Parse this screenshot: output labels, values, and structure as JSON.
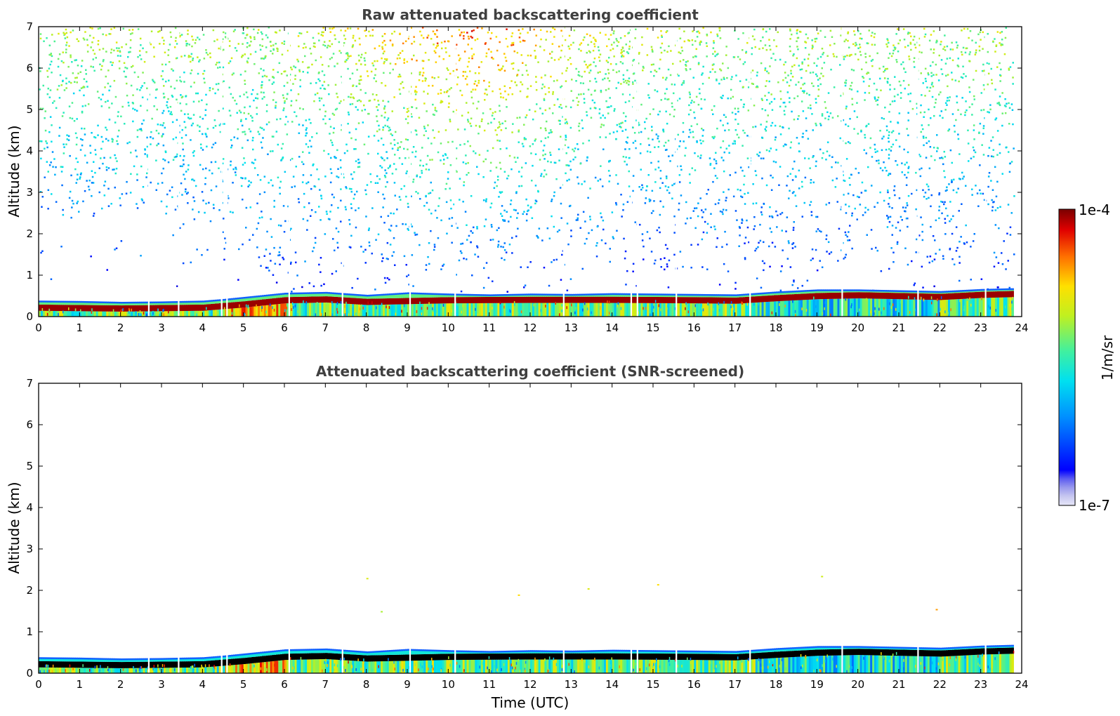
{
  "figure": {
    "colorbar": {
      "max_label": "1e-4",
      "min_label": "1e-7",
      "unit_label": "1/m/sr",
      "min_value": 1e-07,
      "max_value": 0.0001,
      "colormap": "jet",
      "low_end_colors": [
        "#e6e6f8",
        "#c8c8f0",
        "#a8a8ee",
        "#8080ee",
        "#5c5cf0"
      ]
    }
  },
  "chart_data": [
    {
      "type": "heatmap",
      "title": "Raw attenuated backscattering coefficient",
      "xlabel": "",
      "ylabel": "Altitude (km)",
      "xlim": [
        0,
        24
      ],
      "ylim": [
        0,
        7
      ],
      "xticks": [
        "0",
        "1",
        "2",
        "3",
        "4",
        "5",
        "6",
        "7",
        "8",
        "9",
        "10",
        "11",
        "12",
        "13",
        "14",
        "15",
        "16",
        "17",
        "18",
        "19",
        "20",
        "21",
        "22",
        "23",
        "24"
      ],
      "yticks": [
        "0",
        "1",
        "2",
        "3",
        "4",
        "5",
        "6",
        "7"
      ],
      "data_end_time_utc": 23.8,
      "boundary_layer_top_km": [
        [
          0,
          0.36
        ],
        [
          1,
          0.35
        ],
        [
          2,
          0.33
        ],
        [
          3,
          0.34
        ],
        [
          4,
          0.36
        ],
        [
          4.5,
          0.4
        ],
        [
          5,
          0.45
        ],
        [
          6,
          0.55
        ],
        [
          7,
          0.57
        ],
        [
          8,
          0.5
        ],
        [
          9,
          0.56
        ],
        [
          10,
          0.53
        ],
        [
          11,
          0.51
        ],
        [
          12,
          0.53
        ],
        [
          13,
          0.52
        ],
        [
          14,
          0.54
        ],
        [
          15,
          0.53
        ],
        [
          16,
          0.52
        ],
        [
          17,
          0.51
        ],
        [
          18,
          0.58
        ],
        [
          19,
          0.63
        ],
        [
          20,
          0.63
        ],
        [
          21,
          0.61
        ],
        [
          22,
          0.59
        ],
        [
          23,
          0.64
        ],
        [
          23.8,
          0.66
        ]
      ],
      "peak_layer_km": [
        [
          0,
          0.22
        ],
        [
          2,
          0.2
        ],
        [
          4,
          0.22
        ],
        [
          5,
          0.3
        ],
        [
          6,
          0.4
        ],
        [
          7,
          0.42
        ],
        [
          8,
          0.36
        ],
        [
          10,
          0.4
        ],
        [
          12,
          0.41
        ],
        [
          14,
          0.41
        ],
        [
          16,
          0.4
        ],
        [
          17,
          0.39
        ],
        [
          18,
          0.45
        ],
        [
          19,
          0.5
        ],
        [
          20,
          0.52
        ],
        [
          21,
          0.5
        ],
        [
          22,
          0.48
        ],
        [
          23,
          0.53
        ],
        [
          23.8,
          0.55
        ]
      ],
      "data_gaps_utc": [
        2.67,
        3.4,
        4.45,
        4.58,
        6.1,
        7.4,
        9.05,
        10.15,
        12.8,
        14.45,
        14.6,
        15.55,
        17.35,
        19.6,
        21.45,
        23.1
      ]
    },
    {
      "type": "heatmap",
      "title": "Attenuated backscattering coefficient (SNR-screened)",
      "xlabel": "Time (UTC)",
      "ylabel": "Altitude (km)",
      "xlim": [
        0,
        24
      ],
      "ylim": [
        0,
        7
      ],
      "xticks": [
        "0",
        "1",
        "2",
        "3",
        "4",
        "5",
        "6",
        "7",
        "8",
        "9",
        "10",
        "11",
        "12",
        "13",
        "14",
        "15",
        "16",
        "17",
        "18",
        "19",
        "20",
        "21",
        "22",
        "23",
        "24"
      ],
      "yticks": [
        "0",
        "1",
        "2",
        "3",
        "4",
        "5",
        "6",
        "7"
      ],
      "data_end_time_utc": 23.8,
      "screened_layer_note": "saturated peak layer shown in black",
      "isolated_points": [
        [
          8.0,
          2.3
        ],
        [
          8.35,
          1.5
        ],
        [
          11.7,
          1.9
        ],
        [
          13.4,
          2.05
        ],
        [
          15.1,
          2.15
        ],
        [
          19.1,
          2.35
        ],
        [
          21.9,
          1.55
        ]
      ]
    }
  ]
}
